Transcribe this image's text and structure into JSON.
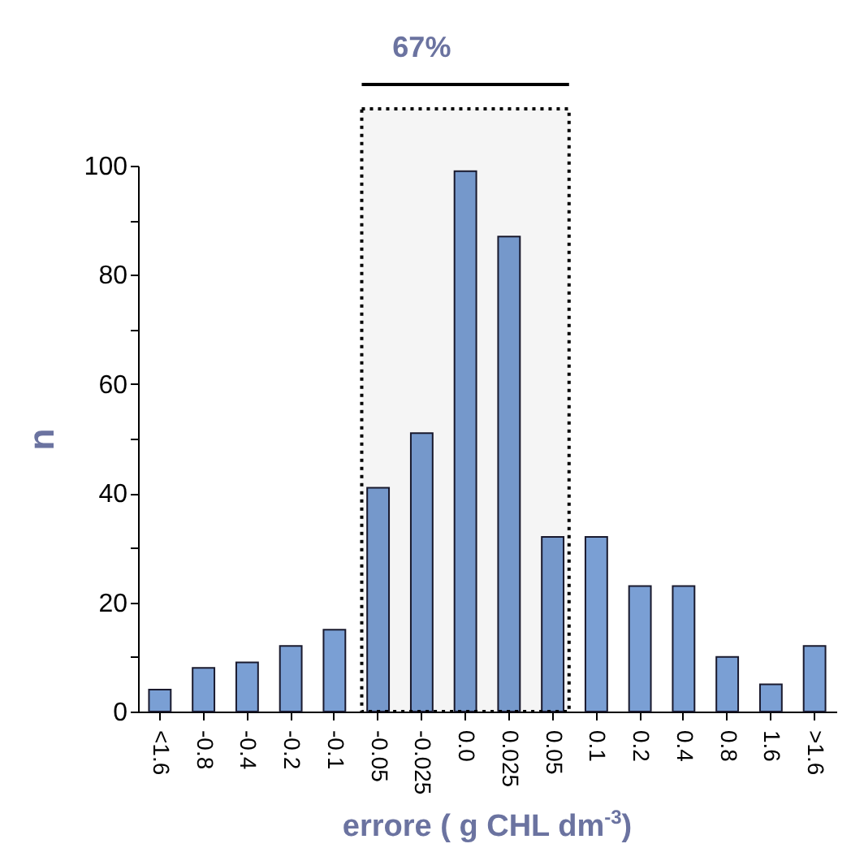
{
  "chart_data": {
    "type": "bar",
    "categories": [
      "<1.6",
      "-0.8",
      "-0.4",
      "-0.2",
      "-0.1",
      "-0.05",
      "-0.025",
      "0.0",
      "0.025",
      "0.05",
      "0.1",
      "0.2",
      "0.4",
      "0.8",
      "1.6",
      ">1.6"
    ],
    "values": [
      4,
      8,
      9,
      12,
      15,
      41,
      51,
      99,
      87,
      32,
      32,
      23,
      23,
      10,
      5,
      12
    ],
    "color": "#7a9fd4",
    "xlabel": "errore (  g CHL dm$^{-3}$)",
    "ylabel": "n",
    "ylim": [
      0,
      100
    ],
    "yticks": [
      0,
      {
        "value": 10,
        "label": null
      },
      20,
      {
        "value": 30,
        "label": null
      },
      40,
      {
        "value": 50,
        "label": null
      },
      60,
      {
        "value": 70,
        "label": null
      },
      80,
      {
        "value": 90,
        "label": null
      },
      100
    ],
    "bands": [
      {
        "axis": "x",
        "from": "-0.05",
        "to": "0.05",
        "label": "67%",
        "color": "#000000"
      }
    ],
    "grid": false
  }
}
